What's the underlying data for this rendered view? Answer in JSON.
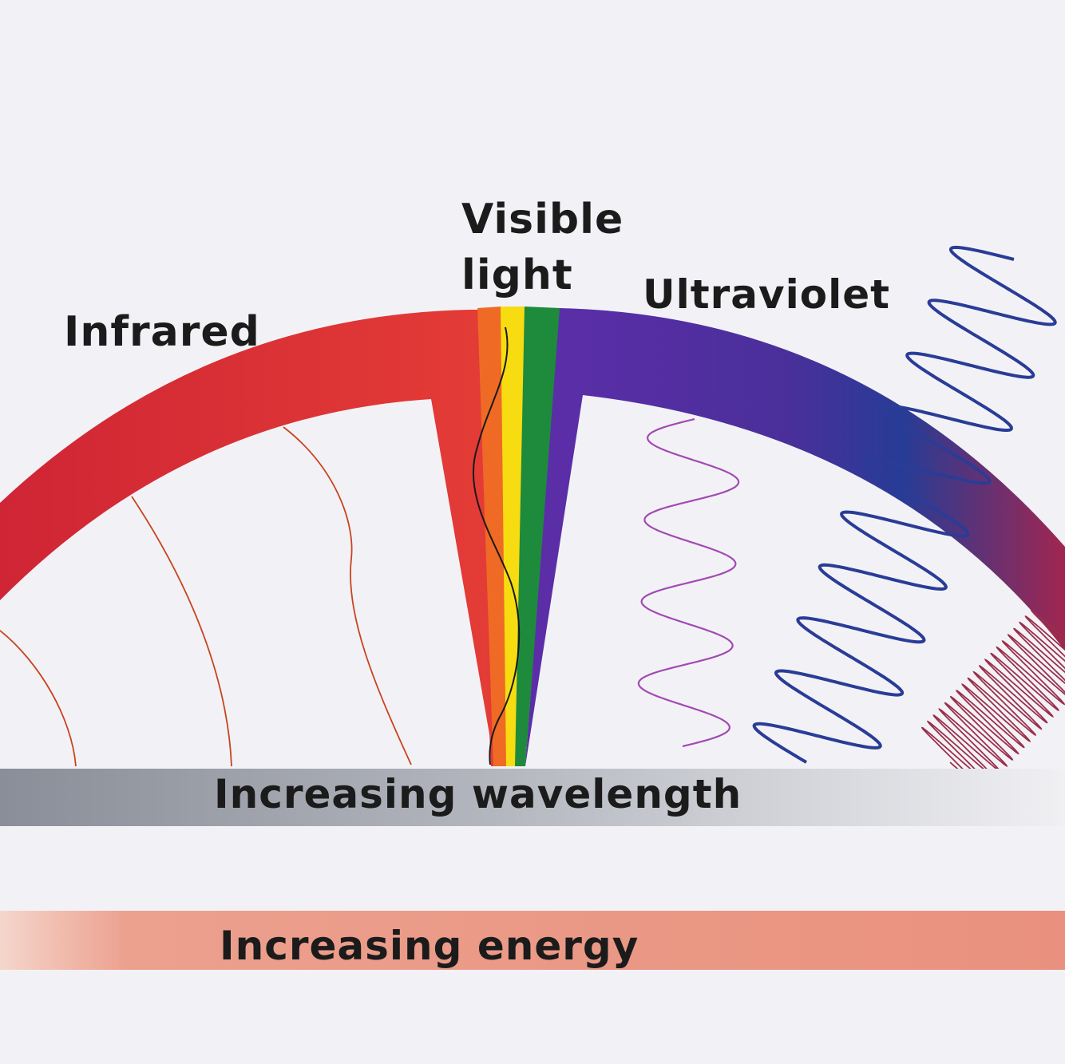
{
  "labels": {
    "infrared": "Infrared",
    "visible_line1": "Visible",
    "visible_line2": "light",
    "ultraviolet": "Ultraviolet"
  },
  "bars": {
    "wavelength": "Increasing wavelength",
    "energy": "Increasing energy"
  },
  "colors": {
    "background": "#f2f2f6",
    "infrared": "#e23a36",
    "orange": "#ef6a24",
    "yellow": "#f7dc12",
    "green": "#1e8a3c",
    "violet": "#5a2ea6",
    "blue": "#2a3c96",
    "magenta": "#9a2a57",
    "wavelength_bar": "#8f939c",
    "energy_bar": "#eb9a88"
  }
}
